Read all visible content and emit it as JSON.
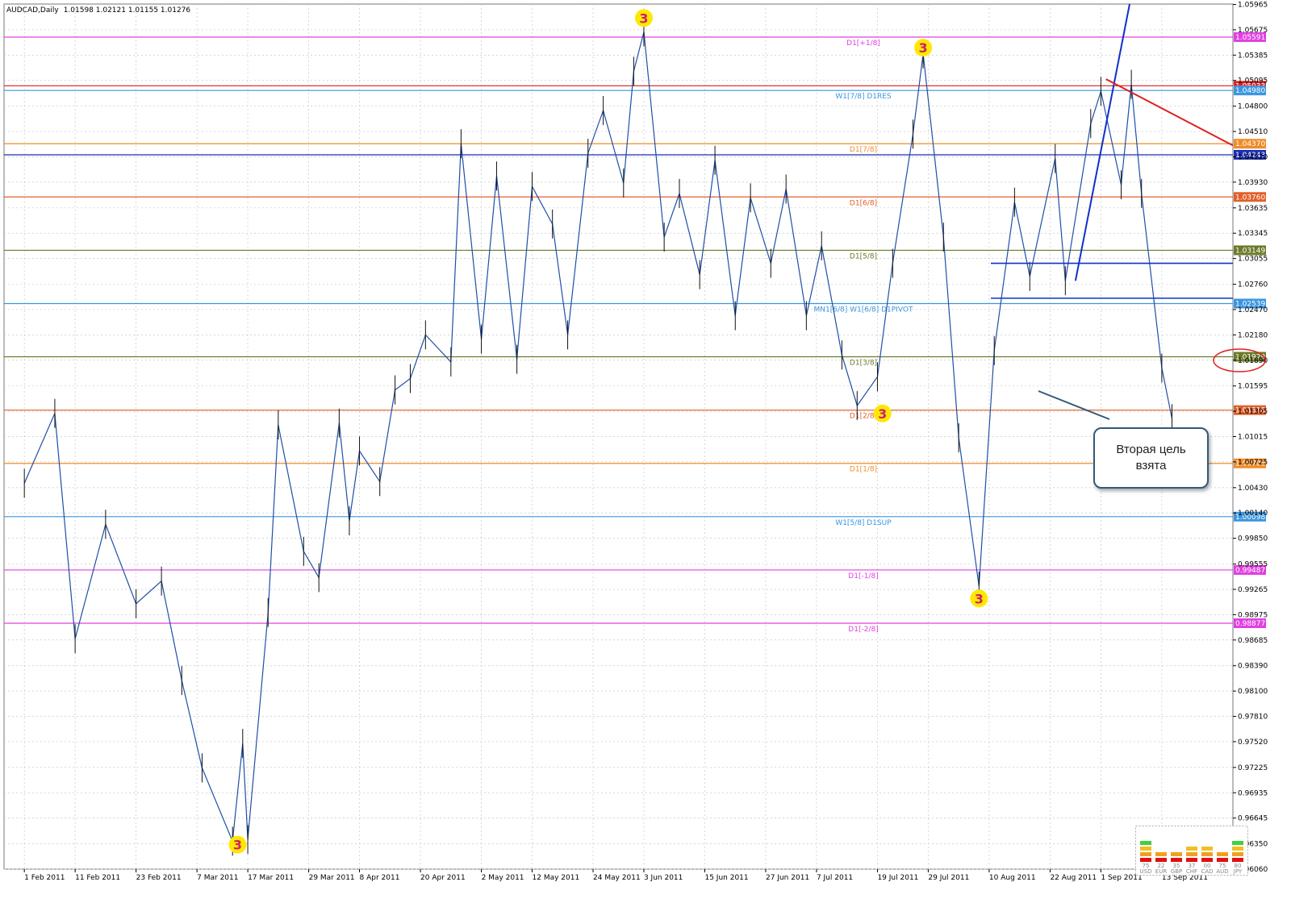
{
  "window": {
    "symbol_title": "AUDCAD,Daily",
    "ohlc": "1.01598 1.02121 1.01155 1.01276"
  },
  "chart_data": {
    "type": "line",
    "title": "",
    "ylim": [
      0.9606,
      1.0597
    ],
    "y_ticks": [
      "1.05965",
      "1.05675",
      "1.05385",
      "1.05095",
      "1.04800",
      "1.04510",
      "1.04220",
      "1.03930",
      "1.03635",
      "1.03345",
      "1.03055",
      "1.02760",
      "1.02470",
      "1.02180",
      "1.01890",
      "1.01595",
      "1.01305",
      "1.01015",
      "1.00725",
      "1.00430",
      "1.00140",
      "0.99850",
      "0.99555",
      "0.99265",
      "0.98975",
      "0.98685",
      "0.98390",
      "0.98100",
      "0.97810",
      "0.97520",
      "0.97225",
      "0.96935",
      "0.96645",
      "0.96350",
      "0.96060"
    ],
    "x_ticks": [
      "1 Feb 2011",
      "11 Feb 2011",
      "23 Feb 2011",
      "7 Mar 2011",
      "17 Mar 2011",
      "29 Mar 2011",
      "8 Apr 2011",
      "20 Apr 2011",
      "2 May 2011",
      "12 May 2011",
      "24 May 2011",
      "3 Jun 2011",
      "15 Jun 2011",
      "27 Jun 2011",
      "7 Jul 2011",
      "19 Jul 2011",
      "29 Jul 2011",
      "10 Aug 2011",
      "22 Aug 2011",
      "1 Sep 2011",
      "13 Sep 2011"
    ],
    "levels": [
      {
        "price": 1.05591,
        "label": "D1[+1/8]",
        "tag": "1.05591",
        "color": "#e040e0"
      },
      {
        "price": 1.05033,
        "label": "",
        "tag": "1.05033",
        "color": "#e02020"
      },
      {
        "price": 1.0498,
        "label": "W1[7/8] D1RES",
        "tag": "1.04980",
        "color": "#3a96e0"
      },
      {
        "price": 1.0437,
        "label": "D1[7/8]",
        "tag": "1.04370",
        "color": "#f08c28"
      },
      {
        "price": 1.04243,
        "label": "",
        "tag": "1.04243",
        "color": "#1a2fb0"
      },
      {
        "price": 1.0376,
        "label": "D1[6/8]",
        "tag": "1.03760",
        "color": "#e0602a"
      },
      {
        "price": 1.03149,
        "label": "D1[5/8]",
        "tag": "1.03149",
        "color": "#6b7a2a"
      },
      {
        "price": 1.02539,
        "label": "MN1[6/8] W1[6/8] D1PIVOT",
        "tag": "1.02539",
        "color": "#3a96e0"
      },
      {
        "price": 1.01929,
        "label": "D1[3/8]",
        "tag": "1.01929",
        "color": "#6b7a2a"
      },
      {
        "price": 1.01318,
        "label": "D1[2/8]",
        "tag": "1.01318",
        "color": "#e0602a"
      },
      {
        "price": 1.00708,
        "label": "D1[1/8]",
        "tag": "1.00708",
        "color": "#f08c28"
      },
      {
        "price": 1.00098,
        "label": "W1[5/8] D1SUP",
        "tag": "1.00098",
        "color": "#3a96e0"
      },
      {
        "price": 0.99487,
        "label": "D1[-1/8]",
        "tag": "0.99487",
        "color": "#e040e0"
      },
      {
        "price": 0.98877,
        "label": "D1[-2/8]",
        "tag": "0.98877",
        "color": "#e040e0"
      }
    ],
    "series": [
      {
        "x": [
          "2011-02-01",
          "2011-02-07",
          "2011-02-11",
          "2011-02-17",
          "2011-02-23",
          "2011-02-28",
          "2011-03-04",
          "2011-03-08",
          "2011-03-14",
          "2011-03-16",
          "2011-03-17",
          "2011-03-21",
          "2011-03-23",
          "2011-03-28",
          "2011-03-31",
          "2011-04-04",
          "2011-04-06",
          "2011-04-08",
          "2011-04-12",
          "2011-04-15",
          "2011-04-18",
          "2011-04-21",
          "2011-04-26",
          "2011-04-28",
          "2011-05-02",
          "2011-05-05",
          "2011-05-09",
          "2011-05-12",
          "2011-05-16",
          "2011-05-19",
          "2011-05-23",
          "2011-05-26",
          "2011-05-30",
          "2011-06-01",
          "2011-06-03",
          "2011-06-07",
          "2011-06-10",
          "2011-06-14",
          "2011-06-17",
          "2011-06-21",
          "2011-06-24",
          "2011-06-28",
          "2011-07-01",
          "2011-07-05",
          "2011-07-08",
          "2011-07-12",
          "2011-07-15",
          "2011-07-19",
          "2011-07-22",
          "2011-07-26",
          "2011-07-28",
          "2011-08-01",
          "2011-08-04",
          "2011-08-08",
          "2011-08-11",
          "2011-08-15",
          "2011-08-18",
          "2011-08-23",
          "2011-08-25",
          "2011-08-30",
          "2011-09-01",
          "2011-09-05",
          "2011-09-07",
          "2011-09-09",
          "2011-09-13",
          "2011-09-15"
        ],
        "y": [
          1.0048,
          1.0128,
          0.987,
          1.0001,
          0.991,
          0.9936,
          0.9822,
          0.9722,
          0.9638,
          0.975,
          0.964,
          0.99,
          1.0115,
          0.997,
          0.994,
          1.0117,
          1.0005,
          1.0085,
          1.005,
          1.0155,
          1.0168,
          1.0218,
          1.0187,
          1.0437,
          1.0213,
          1.04,
          1.019,
          1.0388,
          1.0345,
          1.0218,
          1.0426,
          1.0475,
          1.0392,
          1.052,
          1.0565,
          1.033,
          1.038,
          1.0287,
          1.0418,
          1.024,
          1.0375,
          1.03,
          1.0385,
          1.024,
          1.032,
          1.0195,
          1.0137,
          1.017,
          1.03,
          1.0448,
          1.054,
          1.033,
          1.01,
          0.993,
          1.02,
          1.037,
          1.0285,
          1.042,
          1.028,
          1.046,
          1.0497,
          1.039,
          1.0505,
          1.038,
          1.018,
          1.0122
        ]
      }
    ],
    "grid": true,
    "annotations": [
      {
        "kind": "wave-3",
        "date": "2011-03-15",
        "price": 0.9634,
        "text": "3"
      },
      {
        "kind": "wave-3",
        "date": "2011-06-03",
        "price": 1.0581,
        "text": "3"
      },
      {
        "kind": "wave-3",
        "date": "2011-07-20",
        "price": 1.0128,
        "text": "3"
      },
      {
        "kind": "wave-3",
        "date": "2011-07-28",
        "price": 1.0547,
        "text": "3"
      },
      {
        "kind": "wave-3",
        "date": "2011-08-08",
        "price": 0.9916,
        "text": "3"
      }
    ]
  },
  "callout": {
    "text": "Вторая цель взята"
  },
  "meter": {
    "labels": [
      "USD",
      "EUR",
      "GBP",
      "CHF",
      "CAD",
      "AUD",
      "JPY"
    ],
    "values": [
      "75",
      "22",
      "35",
      "37",
      "00",
      "75",
      "80"
    ]
  },
  "colors": {
    "price_line": "#1f4fa6",
    "trend_blue": "#1030c8",
    "trend_red": "#e02020",
    "wave3_fill": "#ffe800",
    "wave3_text": "#d0206a",
    "pivot_marker": "#d8782a"
  }
}
